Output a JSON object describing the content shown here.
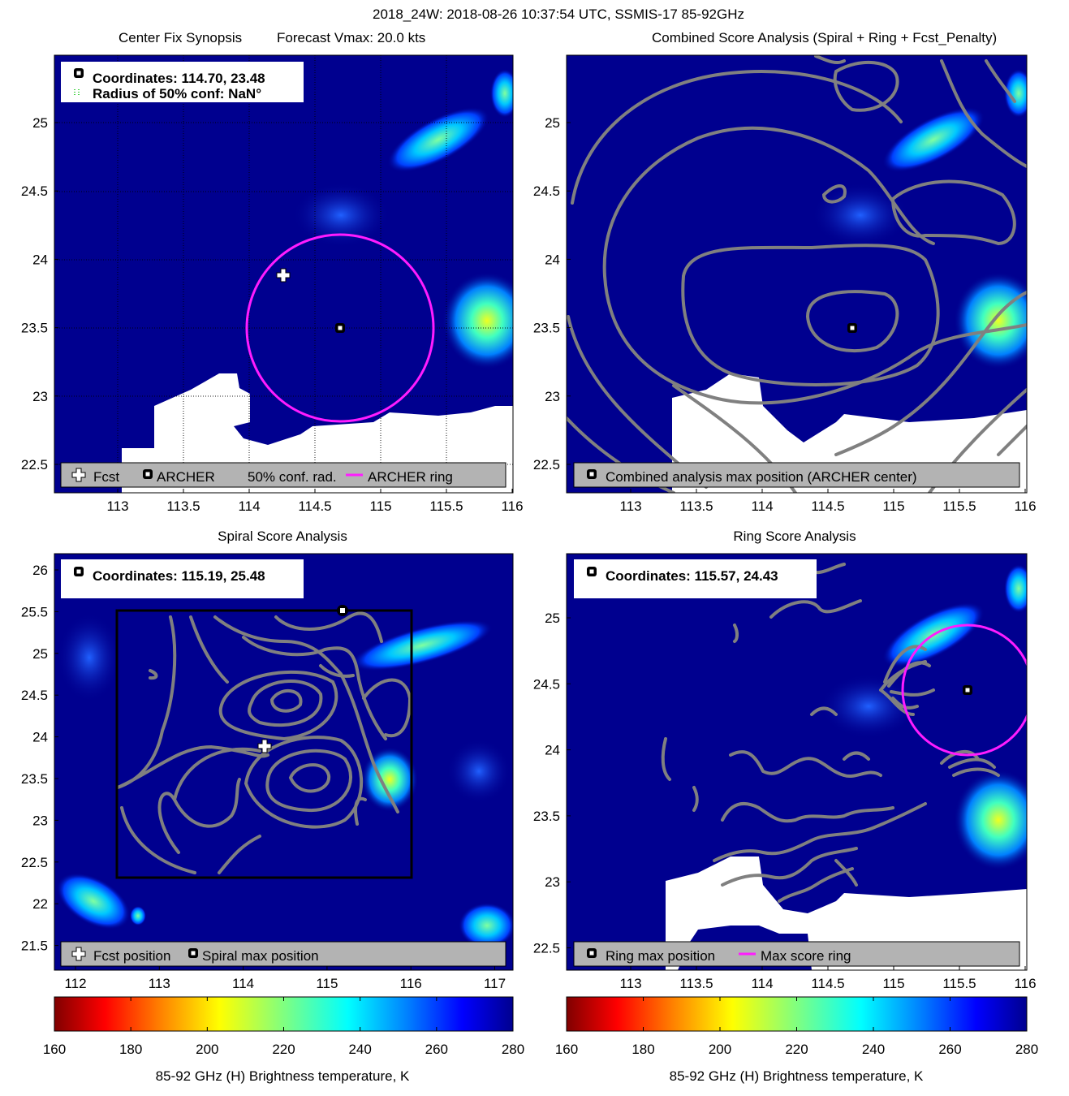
{
  "suptitle": "2018_24W: 2018-08-26 10:37:54 UTC, SSMIS-17 85-92GHz",
  "colors": {
    "background_field": "#00008f",
    "forecast_ring": "#ff1cff",
    "contour": "#808080",
    "legend_bg": "#b3b3b3"
  },
  "panels": {
    "synopsis": {
      "title_left": "Center Fix Synopsis",
      "title_right": "Forecast Vmax: 20.0 kts",
      "info_line1": "Coordinates: 114.70, 23.48",
      "info_line2": "Radius of 50% conf: NaN°",
      "legend": {
        "fcst": "Fcst",
        "archer": "ARCHER",
        "conf": "50% conf. rad.",
        "ring": "ARCHER ring"
      },
      "xticks": [
        "113",
        "113.5",
        "114",
        "114.5",
        "115",
        "115.5",
        "116"
      ],
      "yticks": [
        "25",
        "24.5",
        "24",
        "23.5",
        "23",
        "22.5"
      ]
    },
    "combined": {
      "title": "Combined Score Analysis (Spiral + Ring + Fcst_Penalty)",
      "legend": "Combined analysis max position (ARCHER center)",
      "xticks": [
        "113",
        "113.5",
        "114",
        "114.5",
        "115",
        "115.5",
        "116"
      ],
      "yticks": [
        "25",
        "24.5",
        "24",
        "23.5",
        "23",
        "22.5"
      ]
    },
    "spiral": {
      "title": "Spiral Score Analysis",
      "info_line1": "Coordinates: 115.19, 25.48",
      "legend": {
        "fcst": "Fcst position",
        "max": "Spiral max position"
      },
      "xticks": [
        "112",
        "113",
        "114",
        "115",
        "116",
        "117"
      ],
      "yticks": [
        "26",
        "25.5",
        "25",
        "24.5",
        "24",
        "23.5",
        "23",
        "22.5",
        "22",
        "21.5"
      ]
    },
    "ring": {
      "title": "Ring Score Analysis",
      "info_line1": "Coordinates: 115.57, 24.43",
      "legend": {
        "max": "Ring max position",
        "ring": "Max score ring"
      },
      "xticks": [
        "113",
        "113.5",
        "114",
        "114.5",
        "115",
        "115.5",
        "116"
      ],
      "yticks": [
        "25",
        "24.5",
        "24",
        "23.5",
        "23",
        "22.5"
      ]
    }
  },
  "colorbar": {
    "ticks": [
      "160",
      "180",
      "200",
      "220",
      "240",
      "260",
      "280"
    ],
    "label": "85-92 GHz (H) Brightness temperature, K"
  },
  "chart_data": [
    {
      "type": "heatmap",
      "title": "Center Fix Synopsis",
      "xlim": [
        112.5,
        116
      ],
      "ylim": [
        22.3,
        25.5
      ],
      "points": [
        {
          "name": "ARCHER",
          "x": 114.7,
          "y": 23.48
        },
        {
          "name": "Fcst",
          "x": 114.25,
          "y": 23.88
        }
      ],
      "ring": {
        "center": [
          114.7,
          23.48
        ],
        "radius_deg": 0.68
      },
      "grid": true
    },
    {
      "type": "heatmap",
      "title": "Combined Score Analysis (Spiral + Ring + Fcst_Penalty)",
      "xlim": [
        112.5,
        116
      ],
      "ylim": [
        22.3,
        25.5
      ],
      "points": [
        {
          "name": "Combined analysis max position (ARCHER center)",
          "x": 114.7,
          "y": 23.5
        }
      ],
      "grid": true
    },
    {
      "type": "heatmap",
      "title": "Spiral Score Analysis",
      "xlim": [
        111.7,
        117.2
      ],
      "ylim": [
        21.2,
        26.2
      ],
      "points": [
        {
          "name": "Spiral max position",
          "x": 115.19,
          "y": 25.48
        },
        {
          "name": "Fcst position",
          "x": 114.25,
          "y": 23.88
        }
      ],
      "search_box": {
        "x": [
          112.5,
          116.0
        ],
        "y": [
          22.3,
          25.5
        ]
      }
    },
    {
      "type": "heatmap",
      "title": "Ring Score Analysis",
      "xlim": [
        112.5,
        116
      ],
      "ylim": [
        22.3,
        25.5
      ],
      "points": [
        {
          "name": "Ring max position",
          "x": 115.57,
          "y": 24.43
        }
      ],
      "ring": {
        "center": [
          115.57,
          24.43
        ],
        "radius_deg": 0.45
      },
      "grid": true
    }
  ]
}
